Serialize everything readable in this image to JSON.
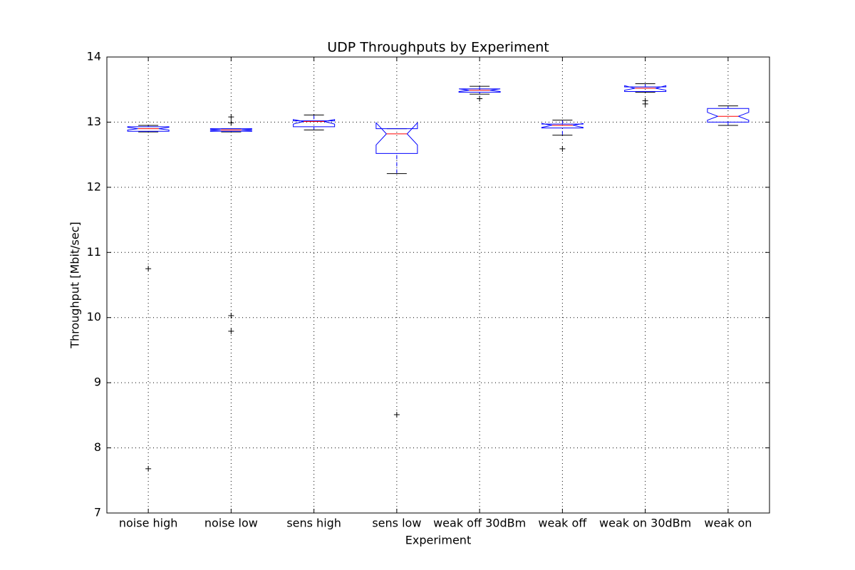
{
  "chart_data": {
    "type": "box",
    "title": "UDP Throughputs by Experiment",
    "x_label": "Experiment",
    "y_label": "Throughput [Mbit/sec]",
    "categories": [
      "noise high",
      "noise low",
      "sens high",
      "sens low",
      "weak off 30dBm",
      "weak off",
      "weak on 30dBm",
      "weak on"
    ],
    "boxes": [
      {
        "whisker_low": 12.85,
        "q1": 12.86,
        "median": 12.9,
        "q3": 12.93,
        "whisker_high": 12.95,
        "notch": [
          12.88,
          12.92
        ],
        "outliers": [
          10.75,
          7.68
        ]
      },
      {
        "whisker_low": 12.85,
        "q1": 12.86,
        "median": 12.88,
        "q3": 12.9,
        "whisker_high": 12.9,
        "notch": [
          12.87,
          12.89
        ],
        "outliers": [
          13.08,
          12.99,
          10.03,
          9.79
        ]
      },
      {
        "whisker_low": 12.88,
        "q1": 12.93,
        "median": 13.01,
        "q3": 13.02,
        "whisker_high": 13.11,
        "notch": [
          12.97,
          13.04
        ],
        "outliers": []
      },
      {
        "whisker_low": 12.21,
        "q1": 12.52,
        "median": 12.82,
        "q3": 12.9,
        "whisker_high": 12.9,
        "notch": [
          12.65,
          12.99
        ],
        "outliers": [
          8.51
        ]
      },
      {
        "whisker_low": 13.43,
        "q1": 13.46,
        "median": 13.49,
        "q3": 13.51,
        "whisker_high": 13.55,
        "notch": [
          13.47,
          13.51
        ],
        "outliers": [
          13.36
        ]
      },
      {
        "whisker_low": 12.8,
        "q1": 12.91,
        "median": 12.95,
        "q3": 12.97,
        "whisker_high": 13.03,
        "notch": [
          12.92,
          12.98
        ],
        "outliers": [
          12.59
        ]
      },
      {
        "whisker_low": 13.46,
        "q1": 13.47,
        "median": 13.52,
        "q3": 13.54,
        "whisker_high": 13.59,
        "notch": [
          13.49,
          13.56
        ],
        "outliers": [
          13.33,
          13.28
        ]
      },
      {
        "whisker_low": 12.95,
        "q1": 13.0,
        "median": 13.09,
        "q3": 13.21,
        "whisker_high": 13.25,
        "notch": [
          13.03,
          13.15
        ],
        "outliers": []
      }
    ],
    "ylim": [
      7,
      14
    ],
    "yticks": [
      7,
      8,
      9,
      10,
      11,
      12,
      13,
      14
    ],
    "grid": true,
    "box_color": "#0000ff",
    "median_color": "#ff0000",
    "cap_color": "#000000",
    "outlier_color": "#000000"
  }
}
